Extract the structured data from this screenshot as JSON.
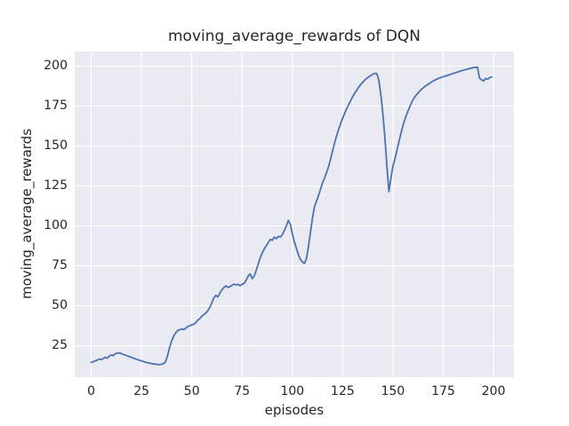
{
  "chart_data": {
    "type": "line",
    "title": "moving_average_rewards of DQN",
    "xlabel": "episodes",
    "ylabel": "moving_average_rewards",
    "x_ticks": [
      0,
      25,
      50,
      75,
      100,
      125,
      150,
      175,
      200
    ],
    "y_ticks": [
      25,
      50,
      75,
      100,
      125,
      150,
      175,
      200
    ],
    "xlim": [
      -8.2,
      210.1
    ],
    "ylim": [
      5.3,
      209.2
    ],
    "grid": true,
    "legend": "none",
    "style": {
      "line_color": "#4c72b0",
      "plot_background": "#eaeaf2",
      "grid_color": "#ffffff",
      "figure_background": "#ffffff",
      "text_color": "#262626"
    },
    "series": [
      {
        "name": "DQN moving average reward",
        "points": [
          [
            0,
            14.5
          ],
          [
            1,
            15
          ],
          [
            2,
            15.5
          ],
          [
            3,
            16
          ],
          [
            4,
            16.7
          ],
          [
            5,
            16.3
          ],
          [
            6,
            17
          ],
          [
            7,
            17.8
          ],
          [
            8,
            17.2
          ],
          [
            9,
            18.5
          ],
          [
            10,
            19.2
          ],
          [
            11,
            18.8
          ],
          [
            12,
            20
          ],
          [
            13,
            20.3
          ],
          [
            14,
            20.6
          ],
          [
            15,
            20
          ],
          [
            16,
            19.5
          ],
          [
            17,
            19.2
          ],
          [
            18,
            18.5
          ],
          [
            19,
            18.2
          ],
          [
            20,
            17.8
          ],
          [
            21,
            17.2
          ],
          [
            22,
            16.8
          ],
          [
            23,
            16.3
          ],
          [
            24,
            15.9
          ],
          [
            25,
            15.5
          ],
          [
            26,
            15.1
          ],
          [
            27,
            14.7
          ],
          [
            28,
            14.4
          ],
          [
            29,
            14.1
          ],
          [
            30,
            13.8
          ],
          [
            31,
            13.6
          ],
          [
            32,
            13.4
          ],
          [
            33,
            13.2
          ],
          [
            34,
            13.2
          ],
          [
            35,
            13.4
          ],
          [
            36,
            13.8
          ],
          [
            37,
            15
          ],
          [
            38,
            19
          ],
          [
            39,
            24
          ],
          [
            40,
            28
          ],
          [
            41,
            31
          ],
          [
            42,
            33
          ],
          [
            43,
            34.5
          ],
          [
            44,
            35
          ],
          [
            45,
            35.5
          ],
          [
            46,
            35
          ],
          [
            47,
            36
          ],
          [
            48,
            37
          ],
          [
            49,
            37.5
          ],
          [
            50,
            38
          ],
          [
            51,
            38.5
          ],
          [
            52,
            39.5
          ],
          [
            53,
            41
          ],
          [
            54,
            42
          ],
          [
            55,
            43.5
          ],
          [
            56,
            44.5
          ],
          [
            57,
            45.5
          ],
          [
            58,
            47
          ],
          [
            59,
            49
          ],
          [
            60,
            52
          ],
          [
            61,
            55
          ],
          [
            62,
            56.5
          ],
          [
            63,
            55.5
          ],
          [
            64,
            58
          ],
          [
            65,
            60
          ],
          [
            66,
            61.5
          ],
          [
            67,
            62.5
          ],
          [
            68,
            61.5
          ],
          [
            69,
            62
          ],
          [
            70,
            63
          ],
          [
            71,
            63.5
          ],
          [
            72,
            63
          ],
          [
            73,
            63.5
          ],
          [
            74,
            62.5
          ],
          [
            75,
            63.5
          ],
          [
            76,
            64
          ],
          [
            77,
            66
          ],
          [
            78,
            68.5
          ],
          [
            79,
            70
          ],
          [
            80,
            67
          ],
          [
            81,
            68.5
          ],
          [
            82,
            72
          ],
          [
            83,
            76
          ],
          [
            84,
            80
          ],
          [
            85,
            83
          ],
          [
            86,
            85.5
          ],
          [
            87,
            87.5
          ],
          [
            88,
            89.5
          ],
          [
            89,
            91.5
          ],
          [
            90,
            91
          ],
          [
            91,
            93
          ],
          [
            92,
            92
          ],
          [
            93,
            93.5
          ],
          [
            94,
            93
          ],
          [
            95,
            94.5
          ],
          [
            96,
            97
          ],
          [
            97,
            100
          ],
          [
            98,
            103.5
          ],
          [
            99,
            101
          ],
          [
            100,
            95
          ],
          [
            101,
            90
          ],
          [
            102,
            86
          ],
          [
            103,
            82
          ],
          [
            104,
            79
          ],
          [
            105,
            77.5
          ],
          [
            106,
            76.5
          ],
          [
            107,
            79.5
          ],
          [
            108,
            87
          ],
          [
            109,
            96
          ],
          [
            110,
            105
          ],
          [
            111,
            112
          ],
          [
            112,
            115.5
          ],
          [
            113,
            119
          ],
          [
            114,
            123
          ],
          [
            115,
            127
          ],
          [
            116,
            130
          ],
          [
            117,
            133.5
          ],
          [
            118,
            137
          ],
          [
            119,
            142
          ],
          [
            120,
            147
          ],
          [
            121,
            152
          ],
          [
            122,
            156.5
          ],
          [
            123,
            160.5
          ],
          [
            124,
            164
          ],
          [
            125,
            167.5
          ],
          [
            126,
            170.5
          ],
          [
            127,
            173.5
          ],
          [
            128,
            176
          ],
          [
            129,
            178.5
          ],
          [
            130,
            181
          ],
          [
            131,
            183
          ],
          [
            132,
            185
          ],
          [
            133,
            187
          ],
          [
            134,
            188.5
          ],
          [
            135,
            190
          ],
          [
            136,
            191.3
          ],
          [
            137,
            192.4
          ],
          [
            138,
            193.3
          ],
          [
            139,
            194.2
          ],
          [
            140,
            194.9
          ],
          [
            141,
            195.5
          ],
          [
            142,
            195.3
          ],
          [
            143,
            191
          ],
          [
            144,
            182
          ],
          [
            145,
            170
          ],
          [
            146,
            155
          ],
          [
            147,
            137
          ],
          [
            148,
            121.5
          ],
          [
            149,
            130
          ],
          [
            150,
            137.5
          ],
          [
            151,
            142
          ],
          [
            152,
            147.5
          ],
          [
            153,
            153
          ],
          [
            154,
            158
          ],
          [
            155,
            163
          ],
          [
            156,
            167
          ],
          [
            157,
            170.5
          ],
          [
            158,
            173.5
          ],
          [
            159,
            176.5
          ],
          [
            160,
            179
          ],
          [
            161,
            181
          ],
          [
            162,
            182.5
          ],
          [
            163,
            184
          ],
          [
            164,
            185.3
          ],
          [
            165,
            186.4
          ],
          [
            166,
            187.4
          ],
          [
            167,
            188.3
          ],
          [
            168,
            189.1
          ],
          [
            169,
            189.9
          ],
          [
            170,
            190.7
          ],
          [
            171,
            191.4
          ],
          [
            172,
            192
          ],
          [
            173,
            192.5
          ],
          [
            174,
            193
          ],
          [
            175,
            193.4
          ],
          [
            176,
            193.8
          ],
          [
            177,
            194.2
          ],
          [
            178,
            194.6
          ],
          [
            179,
            195
          ],
          [
            180,
            195.5
          ],
          [
            181,
            195.9
          ],
          [
            182,
            196.3
          ],
          [
            183,
            196.7
          ],
          [
            184,
            197.1
          ],
          [
            185,
            197.5
          ],
          [
            186,
            197.8
          ],
          [
            187,
            198.1
          ],
          [
            188,
            198.5
          ],
          [
            189,
            198.8
          ],
          [
            190,
            199.1
          ],
          [
            191,
            199.3
          ],
          [
            192,
            199.4
          ],
          [
            193,
            192.6
          ],
          [
            194,
            191.5
          ],
          [
            195,
            190.7
          ],
          [
            196,
            192.3
          ],
          [
            197,
            191.8
          ],
          [
            198,
            192.8
          ],
          [
            199,
            193.2
          ]
        ]
      }
    ]
  }
}
